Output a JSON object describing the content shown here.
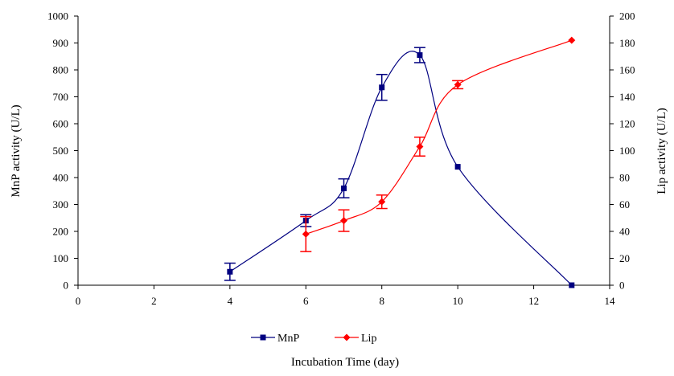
{
  "chart_data": {
    "type": "line",
    "title": "",
    "xlabel": "Incubation Time (day)",
    "ylabel": "MnP activity (U/L)",
    "y2label": "Lip activity (U/L)",
    "xlim": [
      0,
      14
    ],
    "xticks": [
      0,
      2,
      4,
      6,
      8,
      10,
      12,
      14
    ],
    "ylim": [
      0,
      1000
    ],
    "yticks": [
      0,
      100,
      200,
      300,
      400,
      500,
      600,
      700,
      800,
      900,
      1000
    ],
    "y2lim": [
      0,
      200
    ],
    "y2ticks": [
      0,
      20,
      40,
      60,
      80,
      100,
      120,
      140,
      160,
      180,
      200
    ],
    "grid": false,
    "legend_position": "bottom",
    "series": [
      {
        "name": "MnP",
        "axis": "left",
        "color": "#000080",
        "marker": "square",
        "x": [
          4,
          6,
          7,
          8,
          9,
          10,
          13
        ],
        "y": [
          50,
          240,
          360,
          735,
          855,
          440,
          0
        ],
        "error": [
          32,
          22,
          35,
          48,
          28,
          0,
          0
        ]
      },
      {
        "name": "Lip",
        "axis": "right",
        "color": "#ff0000",
        "marker": "diamond",
        "x": [
          6,
          7,
          8,
          9,
          10,
          13
        ],
        "y": [
          38,
          48,
          62,
          103,
          149,
          182
        ],
        "error": [
          13,
          8,
          5,
          7,
          3,
          0
        ]
      }
    ]
  }
}
